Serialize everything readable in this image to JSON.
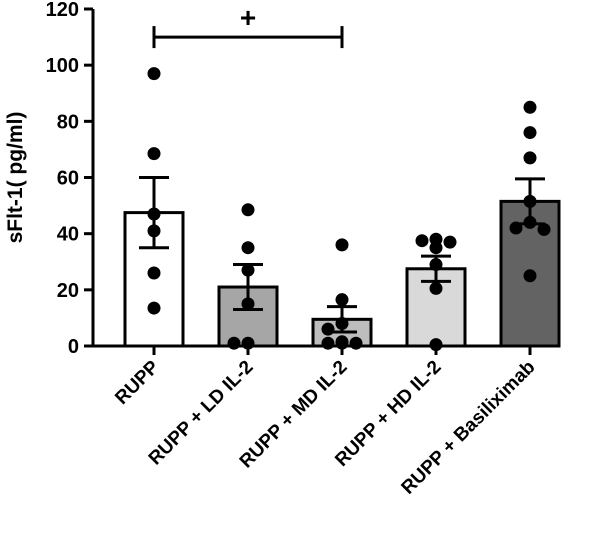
{
  "chart_data": {
    "type": "bar",
    "title": "",
    "xlabel": "",
    "ylabel": "sFlt-1( pg/ml)",
    "ylim": [
      0,
      120
    ],
    "yticks": [
      0,
      20,
      40,
      60,
      80,
      100,
      120
    ],
    "grid": false,
    "categories": [
      "RUPP",
      "RUPP + LD IL-2",
      "RUPP + MD IL-2",
      "RUPP + HD IL-2",
      "RUPP + Basiliximab"
    ],
    "values": [
      47.5,
      21,
      9.5,
      27.5,
      51.5
    ],
    "sem": [
      12.5,
      8,
      4.5,
      4.5,
      8
    ],
    "bar_colors": [
      "#ffffff",
      "#a6a6a6",
      "#bdbdbd",
      "#d9d9d9",
      "#636363"
    ],
    "points": [
      [
        97,
        68.5,
        47,
        41,
        26,
        13.5
      ],
      [
        48.5,
        35,
        27,
        15,
        1,
        1
      ],
      [
        36,
        16.5,
        8,
        6,
        1.5,
        1,
        1,
        1
      ],
      [
        38,
        37.5,
        37,
        35,
        29,
        20.5,
        0.5
      ],
      [
        85,
        76,
        67,
        51.5,
        44,
        42,
        41.5,
        25
      ]
    ],
    "annotations": [
      {
        "text": "+",
        "from_category": "RUPP",
        "to_category": "RUPP + MD IL-2",
        "y": 110
      }
    ]
  }
}
